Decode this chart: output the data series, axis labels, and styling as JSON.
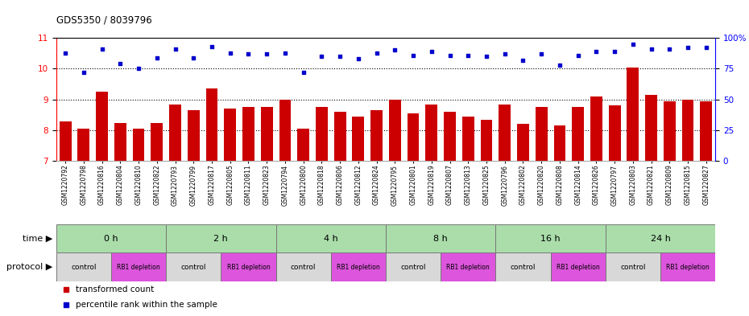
{
  "title": "GDS5350 / 8039796",
  "samples": [
    "GSM1220792",
    "GSM1220798",
    "GSM1220816",
    "GSM1220804",
    "GSM1220810",
    "GSM1220822",
    "GSM1220793",
    "GSM1220799",
    "GSM1220817",
    "GSM1220805",
    "GSM1220811",
    "GSM1220823",
    "GSM1220794",
    "GSM1220800",
    "GSM1220818",
    "GSM1220806",
    "GSM1220812",
    "GSM1220824",
    "GSM1220795",
    "GSM1220801",
    "GSM1220819",
    "GSM1220807",
    "GSM1220813",
    "GSM1220825",
    "GSM1220796",
    "GSM1220802",
    "GSM1220820",
    "GSM1220808",
    "GSM1220814",
    "GSM1220826",
    "GSM1220797",
    "GSM1220803",
    "GSM1220821",
    "GSM1220809",
    "GSM1220815",
    "GSM1220827"
  ],
  "bar_values": [
    8.3,
    8.05,
    9.25,
    8.25,
    8.05,
    8.25,
    8.85,
    8.65,
    9.35,
    8.7,
    8.75,
    8.75,
    9.0,
    8.05,
    8.75,
    8.6,
    8.45,
    8.65,
    9.0,
    8.55,
    8.85,
    8.6,
    8.45,
    8.35,
    8.85,
    8.2,
    8.75,
    8.15,
    8.75,
    9.1,
    8.8,
    10.05,
    9.15,
    8.95,
    9.0,
    8.95
  ],
  "percentile_values": [
    88,
    72,
    91,
    79,
    75,
    84,
    91,
    84,
    93,
    88,
    87,
    87,
    88,
    72,
    85,
    85,
    83,
    88,
    90,
    86,
    89,
    86,
    86,
    85,
    87,
    82,
    87,
    78,
    86,
    89,
    89,
    95,
    91,
    91,
    92,
    92
  ],
  "ylim_left": [
    7,
    11
  ],
  "ylim_right": [
    0,
    100
  ],
  "yticks_left": [
    7,
    8,
    9,
    10,
    11
  ],
  "yticks_right": [
    0,
    25,
    50,
    75,
    100
  ],
  "ytick_labels_right": [
    "0",
    "25",
    "50",
    "75",
    "100%"
  ],
  "bar_color": "#cc0000",
  "dot_color": "#0000cc",
  "background_color": "#ffffff",
  "time_groups": [
    {
      "label": "0 h",
      "start": 0,
      "end": 6
    },
    {
      "label": "2 h",
      "start": 6,
      "end": 12
    },
    {
      "label": "4 h",
      "start": 12,
      "end": 18
    },
    {
      "label": "8 h",
      "start": 18,
      "end": 24
    },
    {
      "label": "16 h",
      "start": 24,
      "end": 30
    },
    {
      "label": "24 h",
      "start": 30,
      "end": 36
    }
  ],
  "protocol_groups": [
    {
      "label": "control",
      "start": 0,
      "end": 3
    },
    {
      "label": "RB1 depletion",
      "start": 3,
      "end": 6
    },
    {
      "label": "control",
      "start": 6,
      "end": 9
    },
    {
      "label": "RB1 depletion",
      "start": 9,
      "end": 12
    },
    {
      "label": "control",
      "start": 12,
      "end": 15
    },
    {
      "label": "RB1 depletion",
      "start": 15,
      "end": 18
    },
    {
      "label": "control",
      "start": 18,
      "end": 21
    },
    {
      "label": "RB1 depletion",
      "start": 21,
      "end": 24
    },
    {
      "label": "control",
      "start": 24,
      "end": 27
    },
    {
      "label": "RB1 depletion",
      "start": 27,
      "end": 30
    },
    {
      "label": "control",
      "start": 30,
      "end": 33
    },
    {
      "label": "RB1 depletion",
      "start": 33,
      "end": 36
    }
  ],
  "time_bg_color": "#aaddaa",
  "control_color": "#d8d8d8",
  "depletion_color": "#dd55dd",
  "label_time": "time",
  "label_protocol": "protocol",
  "legend_items": [
    {
      "color": "#cc0000",
      "label": "transformed count"
    },
    {
      "color": "#0000cc",
      "label": "percentile rank within the sample"
    }
  ]
}
